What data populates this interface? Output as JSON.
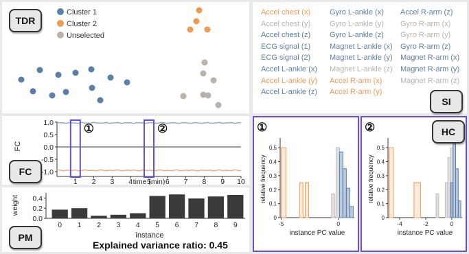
{
  "colors": {
    "cluster1": "#5a7fa8",
    "cluster2": "#ef9b4f",
    "unselected": "#b8b2ad",
    "pc_blue": "#9bb1cc",
    "pc_orange": "#ef9b4f",
    "pc_gray": "#cfcfcf",
    "highlight": "#6b4de6"
  },
  "tdr": {
    "tag": "TDR",
    "legend": [
      {
        "label": "Cluster 1",
        "color_key": "cluster1"
      },
      {
        "label": "Cluster 2",
        "color_key": "cluster2"
      },
      {
        "label": "Unselected",
        "color_key": "unselected"
      }
    ],
    "points": {
      "cluster1": [
        [
          28,
          113
        ],
        [
          55,
          99
        ],
        [
          45,
          130
        ],
        [
          73,
          136
        ],
        [
          82,
          106
        ],
        [
          93,
          131
        ],
        [
          107,
          103
        ],
        [
          130,
          98
        ],
        [
          131,
          125
        ],
        [
          143,
          143
        ],
        [
          158,
          110
        ],
        [
          182,
          117
        ]
      ],
      "cluster2": [
        [
          287,
          12
        ],
        [
          283,
          28
        ],
        [
          274,
          40
        ],
        [
          299,
          40
        ]
      ],
      "unselected": [
        [
          295,
          88
        ],
        [
          293,
          104
        ],
        [
          308,
          114
        ],
        [
          293,
          135
        ],
        [
          264,
          137
        ],
        [
          300,
          136
        ],
        [
          315,
          150
        ]
      ]
    }
  },
  "si": {
    "tag": "SI",
    "columns": [
      [
        {
          "text": "Accel chest (x)",
          "c": "cluster2"
        },
        {
          "text": "Accel chest (y)",
          "c": "unselected"
        },
        {
          "text": "Accel chest (z)",
          "c": "cluster1"
        },
        {
          "text": "ECG signal (1)",
          "c": "cluster1"
        },
        {
          "text": "ECG signal (2)",
          "c": "cluster1"
        },
        {
          "text": "Accel L-ankle (x)",
          "c": "cluster1"
        },
        {
          "text": "Accel L-ankle (y)",
          "c": "cluster2"
        },
        {
          "text": "Accel L-ankle (z)",
          "c": "cluster1"
        }
      ],
      [
        {
          "text": "Gyro L-ankle (x)",
          "c": "cluster1"
        },
        {
          "text": "Gyro L-ankle (y)",
          "c": "unselected"
        },
        {
          "text": "Gyro L-ankle (z)",
          "c": "cluster1"
        },
        {
          "text": "Magnet L-ankle (x)",
          "c": "cluster1"
        },
        {
          "text": "Magnet L-ankle (y)",
          "c": "cluster1"
        },
        {
          "text": "Magnet L-ankle (z)",
          "c": "unselected"
        },
        {
          "text": "Accel R-arm (x)",
          "c": "cluster2"
        },
        {
          "text": "Accel R-arm (y)",
          "c": "cluster2"
        }
      ],
      [
        {
          "text": "Accel R-arm (z)",
          "c": "cluster1"
        },
        {
          "text": "Gyro R-arm (x)",
          "c": "unselected"
        },
        {
          "text": "Gyro R-arm (y)",
          "c": "unselected"
        },
        {
          "text": "Gyro R-arm (z)",
          "c": "cluster1"
        },
        {
          "text": "Magnet R-arm (x)",
          "c": "cluster1"
        },
        {
          "text": "Magnet R-arm (y)",
          "c": "cluster1"
        },
        {
          "text": "Magnet R-arm (z)",
          "c": "unselected"
        }
      ]
    ]
  },
  "fc": {
    "tag": "FC",
    "ylabel": "FC",
    "xlabel": "time (min)",
    "yticks": [
      "1.0",
      "0.5",
      "0.0",
      "-0.5",
      "-1.0"
    ],
    "xticks": [
      "1",
      "2",
      "3",
      "4",
      "5",
      "6",
      "7",
      "8",
      "9",
      "10"
    ],
    "markers": [
      "①",
      "②"
    ]
  },
  "pm": {
    "tag": "PM",
    "ylabel": "weight",
    "xlabel": "instance",
    "yticks": [
      "0.4",
      "0.2",
      "0.0"
    ],
    "categories": [
      "0",
      "1",
      "2",
      "3",
      "4",
      "5",
      "6",
      "7",
      "8",
      "9"
    ],
    "values": [
      0.17,
      0.2,
      0.05,
      0.07,
      0.1,
      0.44,
      0.47,
      0.39,
      0.43,
      0.46
    ],
    "evr": "Explained variance ratio: 0.45"
  },
  "hc": {
    "tag": "HC",
    "ylabel": "relative frequency",
    "xlabel": "instance PC value",
    "left": {
      "marker": "①",
      "yticks": [
        "0.5",
        "0.4",
        "0.3",
        "0.2",
        "0.1",
        "0"
      ],
      "xticks": [
        "-5",
        "0"
      ],
      "orange": [
        [
          -5,
          -4.6,
          0.5
        ],
        [
          -3.4,
          -3.1,
          0.25
        ],
        [
          -2.9,
          -2.6,
          0.25
        ]
      ],
      "gray": [
        [
          -0.6,
          -0.3,
          0.17
        ],
        [
          -0.2,
          0.1,
          0.5
        ]
      ],
      "blue": [
        [
          0.1,
          0.4,
          0.47
        ],
        [
          0.4,
          0.7,
          0.35
        ],
        [
          0.7,
          1.0,
          0.21
        ],
        [
          1.0,
          1.3,
          0.08
        ]
      ]
    },
    "right": {
      "marker": "②",
      "yticks": [
        "0.5",
        "0.4",
        "0.3",
        "0.2",
        "0.1",
        "0"
      ],
      "xticks": [
        "-4",
        "-2",
        "0"
      ],
      "orange": [
        [
          -4.8,
          -4.5,
          0.5
        ],
        [
          -2.9,
          -2.4,
          0.25
        ]
      ],
      "gray": [
        [
          -1.2,
          -1.0,
          0.17
        ],
        [
          -0.5,
          -0.3,
          0.25
        ],
        [
          -0.3,
          -0.1,
          0.43
        ],
        [
          -0.1,
          0.1,
          0.5
        ]
      ],
      "blue": [
        [
          -0.1,
          0.1,
          0.25
        ],
        [
          0.1,
          0.3,
          0.55
        ],
        [
          0.3,
          0.5,
          0.35
        ],
        [
          0.5,
          0.7,
          0.12
        ]
      ]
    }
  }
}
